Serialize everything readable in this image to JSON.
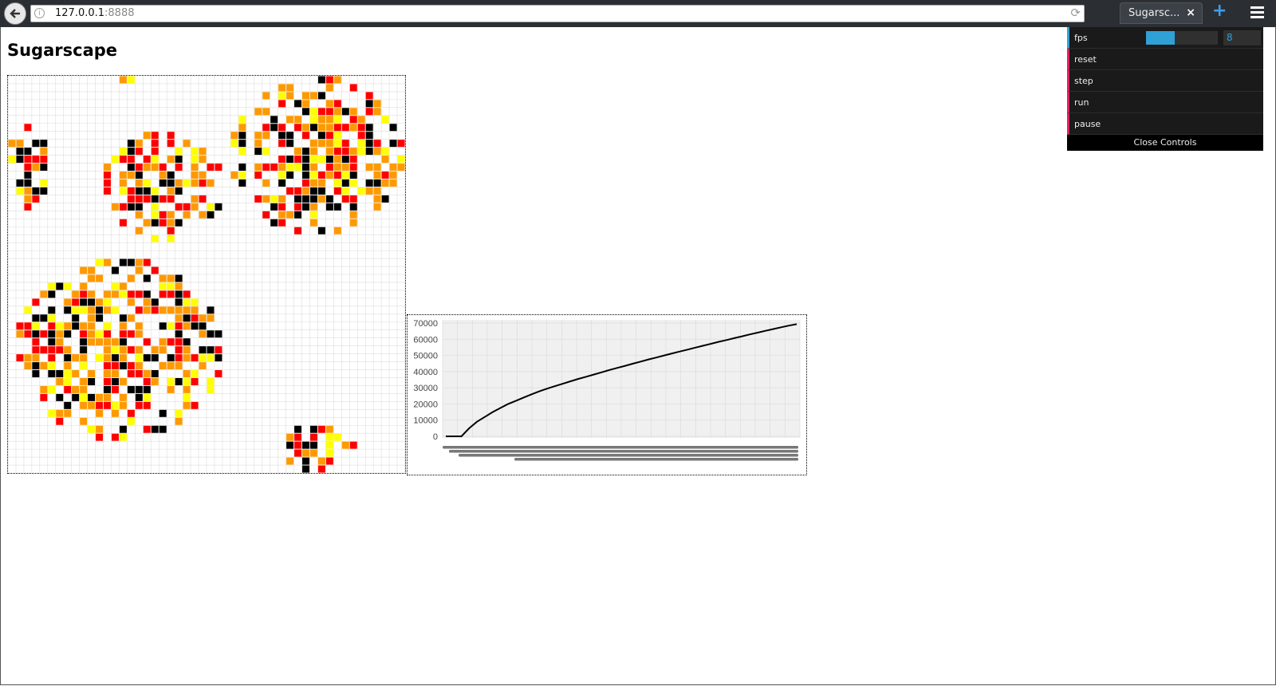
{
  "browser": {
    "url_host": "127.0.0.1",
    "url_port": ":8888",
    "tab_title": "Sugarsc...",
    "tab_close": "×",
    "new_tab": "+",
    "info_glyph": "i",
    "reload_glyph": "⟳",
    "icons": [
      "back-icon",
      "info-icon",
      "reload-icon",
      "close-icon",
      "plus-icon",
      "hamburger-menu-icon"
    ]
  },
  "page": {
    "title": "Sugarscape"
  },
  "colors": {
    "yellow": "#ffff00",
    "orange": "#ff9900",
    "red": "#ff0000",
    "black": "#000000",
    "grid_line": "#dddddd",
    "gui_number_accent": "#2fa1d6",
    "gui_function_accent": "#e61d5f"
  },
  "sugarscape": {
    "grid_size": 50,
    "legend_codes": {
      "Y": "yellow",
      "O": "orange",
      "R": "red",
      "K": "black"
    },
    "clusters": [
      {
        "area": "top-left",
        "col_range": [
          14,
          15
        ],
        "row_range": [
          0,
          0
        ],
        "cells": "OY"
      },
      {
        "area": "top-right",
        "col_range": [
          28,
          49
        ],
        "row_range": [
          0,
          19
        ]
      },
      {
        "area": "left-edge",
        "col_range": [
          0,
          4
        ],
        "row_range": [
          6,
          16
        ]
      },
      {
        "area": "middle-left",
        "col_range": [
          12,
          26
        ],
        "row_range": [
          7,
          20
        ]
      },
      {
        "area": "bottom-left",
        "col_range": [
          1,
          26
        ],
        "row_range": [
          23,
          45
        ]
      },
      {
        "area": "bottom-center",
        "col_range": [
          34,
          43
        ],
        "row_range": [
          44,
          49
        ]
      }
    ]
  },
  "chart_data": {
    "type": "line",
    "title": "",
    "xlabel": "",
    "ylabel": "",
    "ylim": [
      0,
      70000
    ],
    "yticks": [
      "70000",
      "60000",
      "50000",
      "40000",
      "30000",
      "20000",
      "10000",
      "0"
    ],
    "grid": true,
    "series": [
      {
        "x": [
          0,
          1,
          2,
          3,
          4,
          5,
          6,
          7,
          8,
          9,
          10,
          11,
          12,
          13,
          14,
          15,
          16,
          17,
          18,
          19,
          20,
          21,
          22,
          23,
          24,
          25,
          26,
          27,
          28,
          29,
          30,
          31,
          32,
          33,
          34,
          35,
          36,
          37,
          38,
          39,
          40,
          41,
          42,
          43,
          44,
          45
        ],
        "values": [
          0,
          0,
          0,
          5000,
          9000,
          12000,
          15000,
          17500,
          20000,
          22000,
          24000,
          26000,
          27800,
          29500,
          31000,
          32500,
          34000,
          35500,
          36800,
          38200,
          39600,
          41000,
          42300,
          43600,
          44900,
          46200,
          47500,
          48700,
          50000,
          51200,
          52400,
          53600,
          54800,
          56000,
          57200,
          58400,
          59500,
          60700,
          61800,
          63000,
          64100,
          65200,
          66300,
          67400,
          68400,
          69300
        ]
      }
    ]
  },
  "controls": {
    "fps_label": "fps",
    "fps_value": "8",
    "fps_fraction": 0.4,
    "buttons": [
      "reset",
      "step",
      "run",
      "pause"
    ],
    "close_label": "Close Controls"
  }
}
